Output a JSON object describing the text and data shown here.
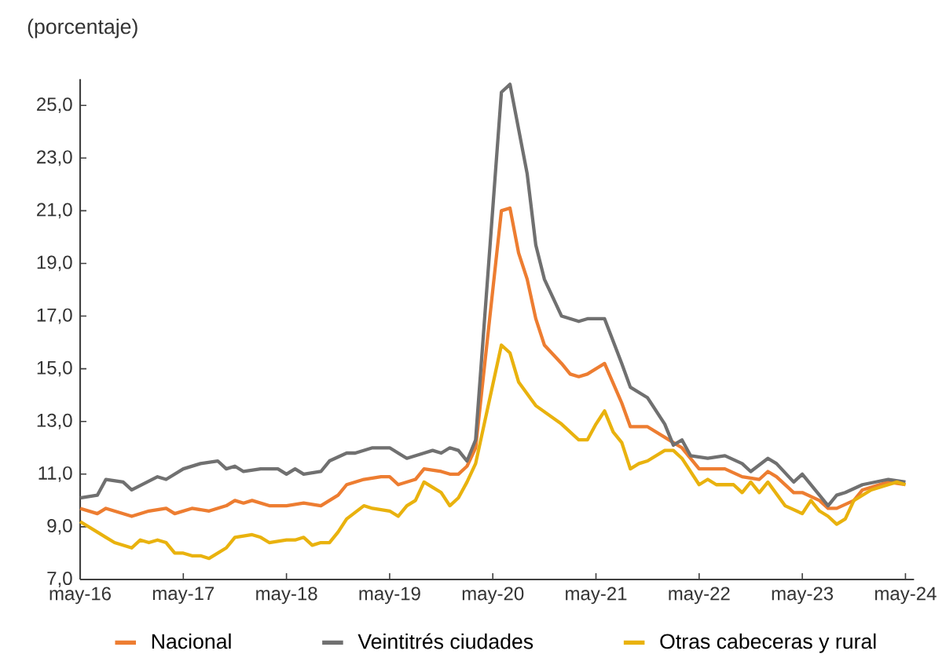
{
  "chart_data": {
    "type": "line",
    "ylabel": "(porcentaje)",
    "ylim": [
      7,
      26
    ],
    "yticks": [
      {
        "value": 7,
        "label": "7,0"
      },
      {
        "value": 9,
        "label": "9,0"
      },
      {
        "value": 11,
        "label": "11,0"
      },
      {
        "value": 13,
        "label": "13,0"
      },
      {
        "value": 15,
        "label": "15,0"
      },
      {
        "value": 17,
        "label": "17,0"
      },
      {
        "value": 19,
        "label": "19,0"
      },
      {
        "value": 21,
        "label": "21,0"
      },
      {
        "value": 23,
        "label": "23,0"
      },
      {
        "value": 25,
        "label": "25,0"
      }
    ],
    "xlim": [
      "2016-05",
      "2024-06"
    ],
    "xticks": [
      {
        "value": "2016-05",
        "label": "may-16"
      },
      {
        "value": "2017-05",
        "label": "may-17"
      },
      {
        "value": "2018-05",
        "label": "may-18"
      },
      {
        "value": "2019-05",
        "label": "may-19"
      },
      {
        "value": "2020-05",
        "label": "may-20"
      },
      {
        "value": "2021-05",
        "label": "may-21"
      },
      {
        "value": "2022-05",
        "label": "may-22"
      },
      {
        "value": "2023-05",
        "label": "may-23"
      },
      {
        "value": "2024-05",
        "label": "may-24"
      }
    ],
    "legend": "bottom",
    "grid": false,
    "marker": "none",
    "line_style": "solid",
    "series": [
      {
        "name": "Nacional",
        "color": "#ed7d31",
        "x": [
          "2016-05",
          "2016-07",
          "2016-08",
          "2016-11",
          "2017-01",
          "2017-03",
          "2017-04",
          "2017-06",
          "2017-08",
          "2017-10",
          "2017-11",
          "2017-12",
          "2018-01",
          "2018-03",
          "2018-05",
          "2018-07",
          "2018-09",
          "2018-11",
          "2018-12",
          "2019-02",
          "2019-04",
          "2019-05",
          "2019-06",
          "2019-08",
          "2019-09",
          "2019-11",
          "2019-12",
          "2020-01",
          "2020-02",
          "2020-03",
          "2020-06",
          "2020-07",
          "2020-08",
          "2020-09",
          "2020-10",
          "2020-11",
          "2021-01",
          "2021-02",
          "2021-03",
          "2021-04",
          "2021-06",
          "2021-08",
          "2021-09",
          "2021-11",
          "2022-01",
          "2022-02",
          "2022-03",
          "2022-05",
          "2022-08",
          "2022-10",
          "2022-12",
          "2023-01",
          "2023-02",
          "2023-04",
          "2023-05",
          "2023-07",
          "2023-08",
          "2023-09",
          "2023-11",
          "2023-12",
          "2024-03",
          "2024-05"
        ],
        "values": [
          9.7,
          9.5,
          9.7,
          9.4,
          9.6,
          9.7,
          9.5,
          9.7,
          9.6,
          9.8,
          10.0,
          9.9,
          10.0,
          9.8,
          9.8,
          9.9,
          9.8,
          10.2,
          10.6,
          10.8,
          10.9,
          10.9,
          10.6,
          10.8,
          11.2,
          11.1,
          11.0,
          11.0,
          11.3,
          12.0,
          21.0,
          21.1,
          19.4,
          18.4,
          16.9,
          15.9,
          15.2,
          14.8,
          14.7,
          14.8,
          15.2,
          13.7,
          12.8,
          12.8,
          12.4,
          12.2,
          12.0,
          11.2,
          11.2,
          10.9,
          10.8,
          11.1,
          10.9,
          10.3,
          10.3,
          10.0,
          9.7,
          9.7,
          10.0,
          10.4,
          10.7,
          10.6
        ]
      },
      {
        "name": "Veintitrés ciudades",
        "color": "#707070",
        "x": [
          "2016-05",
          "2016-07",
          "2016-08",
          "2016-10",
          "2016-11",
          "2017-02",
          "2017-03",
          "2017-05",
          "2017-07",
          "2017-09",
          "2017-10",
          "2017-11",
          "2017-12",
          "2018-02",
          "2018-04",
          "2018-05",
          "2018-06",
          "2018-07",
          "2018-09",
          "2018-10",
          "2018-12",
          "2019-01",
          "2019-03",
          "2019-05",
          "2019-07",
          "2019-09",
          "2019-10",
          "2019-11",
          "2019-12",
          "2020-01",
          "2020-02",
          "2020-03",
          "2020-06",
          "2020-07",
          "2020-09",
          "2020-10",
          "2020-11",
          "2021-01",
          "2021-03",
          "2021-04",
          "2021-06",
          "2021-08",
          "2021-09",
          "2021-11",
          "2022-01",
          "2022-02",
          "2022-03",
          "2022-04",
          "2022-06",
          "2022-08",
          "2022-10",
          "2022-11",
          "2023-01",
          "2023-02",
          "2023-04",
          "2023-05",
          "2023-07",
          "2023-08",
          "2023-09",
          "2023-10",
          "2023-12",
          "2024-03",
          "2024-05"
        ],
        "values": [
          10.1,
          10.2,
          10.8,
          10.7,
          10.4,
          10.9,
          10.8,
          11.2,
          11.4,
          11.5,
          11.2,
          11.3,
          11.1,
          11.2,
          11.2,
          11.0,
          11.2,
          11.0,
          11.1,
          11.5,
          11.8,
          11.8,
          12.0,
          12.0,
          11.6,
          11.8,
          11.9,
          11.8,
          12.0,
          11.9,
          11.5,
          12.3,
          25.5,
          25.8,
          22.4,
          19.7,
          18.4,
          17.0,
          16.8,
          16.9,
          16.9,
          15.2,
          14.3,
          13.9,
          12.9,
          12.1,
          12.3,
          11.7,
          11.6,
          11.7,
          11.4,
          11.1,
          11.6,
          11.4,
          10.7,
          11.0,
          10.2,
          9.8,
          10.2,
          10.3,
          10.6,
          10.8,
          10.7
        ]
      },
      {
        "name": "Otras cabeceras y rural",
        "color": "#e9b20e",
        "x": [
          "2016-05",
          "2016-07",
          "2016-08",
          "2016-09",
          "2016-11",
          "2016-12",
          "2017-01",
          "2017-02",
          "2017-03",
          "2017-04",
          "2017-05",
          "2017-06",
          "2017-07",
          "2017-08",
          "2017-10",
          "2017-11",
          "2018-01",
          "2018-02",
          "2018-03",
          "2018-05",
          "2018-06",
          "2018-07",
          "2018-08",
          "2018-09",
          "2018-10",
          "2018-11",
          "2018-12",
          "2019-02",
          "2019-03",
          "2019-05",
          "2019-06",
          "2019-07",
          "2019-08",
          "2019-09",
          "2019-10",
          "2019-11",
          "2019-12",
          "2020-01",
          "2020-02",
          "2020-03",
          "2020-06",
          "2020-07",
          "2020-08",
          "2020-10",
          "2021-01",
          "2021-03",
          "2021-04",
          "2021-05",
          "2021-06",
          "2021-07",
          "2021-08",
          "2021-09",
          "2021-10",
          "2021-11",
          "2022-01",
          "2022-02",
          "2022-03",
          "2022-05",
          "2022-06",
          "2022-07",
          "2022-09",
          "2022-10",
          "2022-11",
          "2022-12",
          "2023-01",
          "2023-03",
          "2023-05",
          "2023-06",
          "2023-07",
          "2023-08",
          "2023-09",
          "2023-10",
          "2023-11",
          "2024-01",
          "2024-03",
          "2024-04",
          "2024-05"
        ],
        "values": [
          9.2,
          8.8,
          8.6,
          8.4,
          8.2,
          8.5,
          8.4,
          8.5,
          8.4,
          8.0,
          8.0,
          7.9,
          7.9,
          7.8,
          8.2,
          8.6,
          8.7,
          8.6,
          8.4,
          8.5,
          8.5,
          8.6,
          8.3,
          8.4,
          8.4,
          8.8,
          9.3,
          9.8,
          9.7,
          9.6,
          9.4,
          9.8,
          10.0,
          10.7,
          10.5,
          10.3,
          9.8,
          10.1,
          10.7,
          11.4,
          15.9,
          15.6,
          14.5,
          13.6,
          12.9,
          12.3,
          12.3,
          12.9,
          13.4,
          12.6,
          12.2,
          11.2,
          11.4,
          11.5,
          11.9,
          11.9,
          11.6,
          10.6,
          10.8,
          10.6,
          10.6,
          10.3,
          10.7,
          10.3,
          10.7,
          9.8,
          9.5,
          10.0,
          9.6,
          9.4,
          9.1,
          9.3,
          10.0,
          10.4,
          10.6,
          10.7,
          10.6
        ]
      }
    ]
  }
}
